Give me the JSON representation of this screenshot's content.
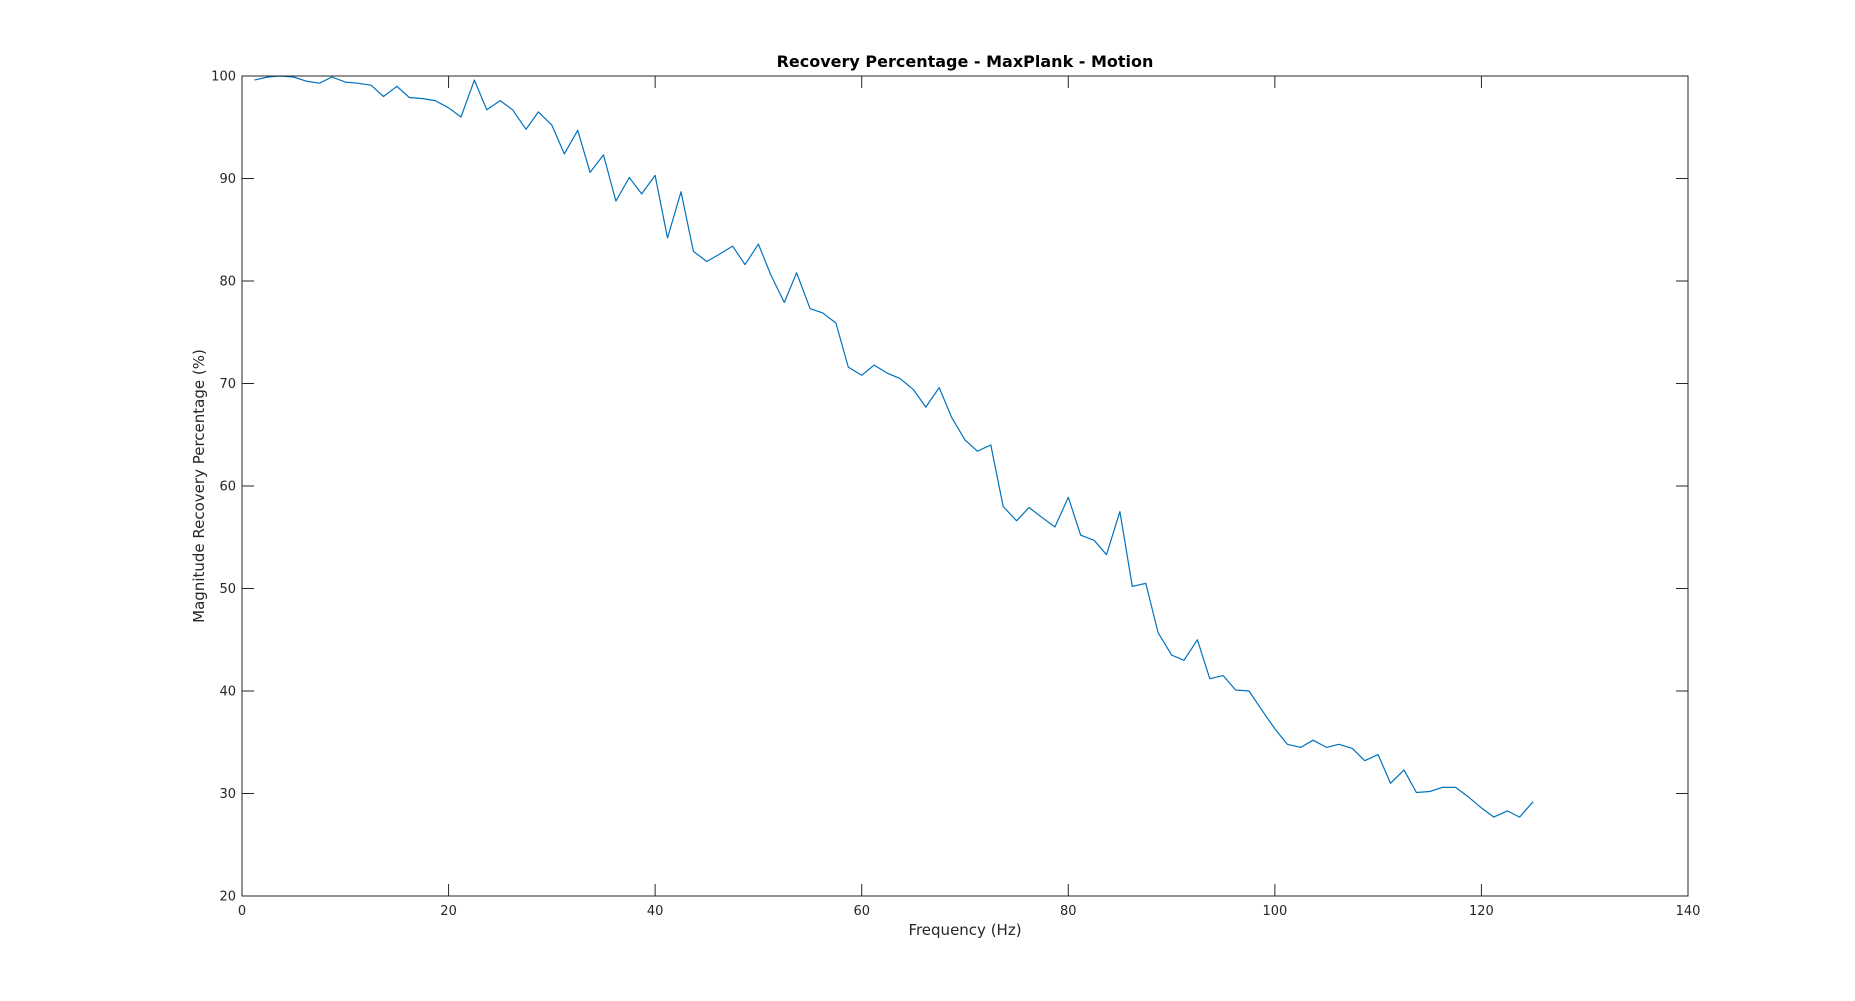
{
  "chart_data": {
    "type": "line",
    "title": "Recovery Percentage - MaxPlank - Motion",
    "xlabel": "Frequency (Hz)",
    "ylabel": "Magnitude Recovery Percentage (%)",
    "xlim": [
      0,
      140
    ],
    "ylim": [
      20,
      100
    ],
    "xticks": [
      0,
      20,
      40,
      60,
      80,
      100,
      120,
      140
    ],
    "yticks": [
      20,
      30,
      40,
      50,
      60,
      70,
      80,
      90,
      100
    ],
    "grid": false,
    "line_color": "#0072BD",
    "series": [
      {
        "x": [
          1.2,
          2.5,
          3.7,
          5.0,
          6.2,
          7.5,
          8.7,
          10.0,
          11.2,
          12.5,
          13.7,
          15.0,
          16.2,
          17.5,
          18.7,
          20.0,
          21.2,
          22.5,
          23.7,
          25.0,
          26.2,
          27.5,
          28.7,
          30.0,
          31.2,
          32.5,
          33.7,
          35.0,
          36.2,
          37.5,
          38.7,
          40.0,
          41.2,
          42.5,
          43.7,
          45.0,
          46.2,
          47.5,
          48.7,
          50.0,
          51.2,
          52.5,
          53.7,
          55.0,
          56.2,
          57.5,
          58.7,
          60.0,
          61.2,
          62.5,
          63.7,
          65.0,
          66.2,
          67.5,
          68.7,
          70.0,
          71.2,
          72.5,
          73.7,
          75.0,
          76.2,
          77.5,
          78.7,
          80.0,
          81.2,
          82.5,
          83.7,
          85.0,
          86.2,
          87.5,
          88.7,
          90.0,
          91.2,
          92.5,
          93.7,
          95.0,
          96.2,
          97.5,
          98.7,
          100.0,
          101.2,
          102.5,
          103.7,
          105.0,
          106.2,
          107.5,
          108.7,
          110.0,
          111.2,
          112.5,
          113.7,
          115.0,
          116.2,
          117.5,
          118.7,
          120.0,
          121.2,
          122.5,
          123.7,
          125.0
        ],
        "values": [
          99.6,
          99.9,
          100.0,
          99.9,
          99.5,
          99.3,
          99.9,
          99.4,
          99.3,
          99.1,
          98.0,
          99.0,
          97.9,
          97.8,
          97.6,
          96.9,
          96.0,
          99.6,
          96.7,
          97.6,
          96.7,
          94.8,
          96.5,
          95.2,
          92.4,
          94.7,
          90.6,
          92.3,
          87.8,
          90.1,
          88.5,
          90.3,
          84.2,
          88.7,
          82.9,
          81.9,
          82.6,
          83.4,
          81.6,
          83.6,
          80.6,
          77.9,
          80.8,
          77.3,
          76.9,
          75.9,
          71.6,
          70.8,
          71.8,
          71.0,
          70.5,
          69.4,
          67.7,
          69.6,
          66.7,
          64.5,
          63.4,
          64.0,
          58.0,
          56.6,
          57.9,
          56.9,
          56.0,
          58.9,
          55.2,
          54.7,
          53.3,
          57.5,
          50.2,
          50.5,
          45.7,
          43.5,
          43.0,
          45.0,
          41.2,
          41.5,
          40.1,
          40.0,
          38.2,
          36.3,
          34.8,
          34.5,
          35.2,
          34.5,
          34.8,
          34.4,
          33.2,
          33.8,
          31.0,
          32.3,
          30.1,
          30.2,
          30.6,
          30.6,
          29.7,
          28.6,
          27.7,
          28.3,
          27.7,
          29.2
        ]
      }
    ]
  }
}
